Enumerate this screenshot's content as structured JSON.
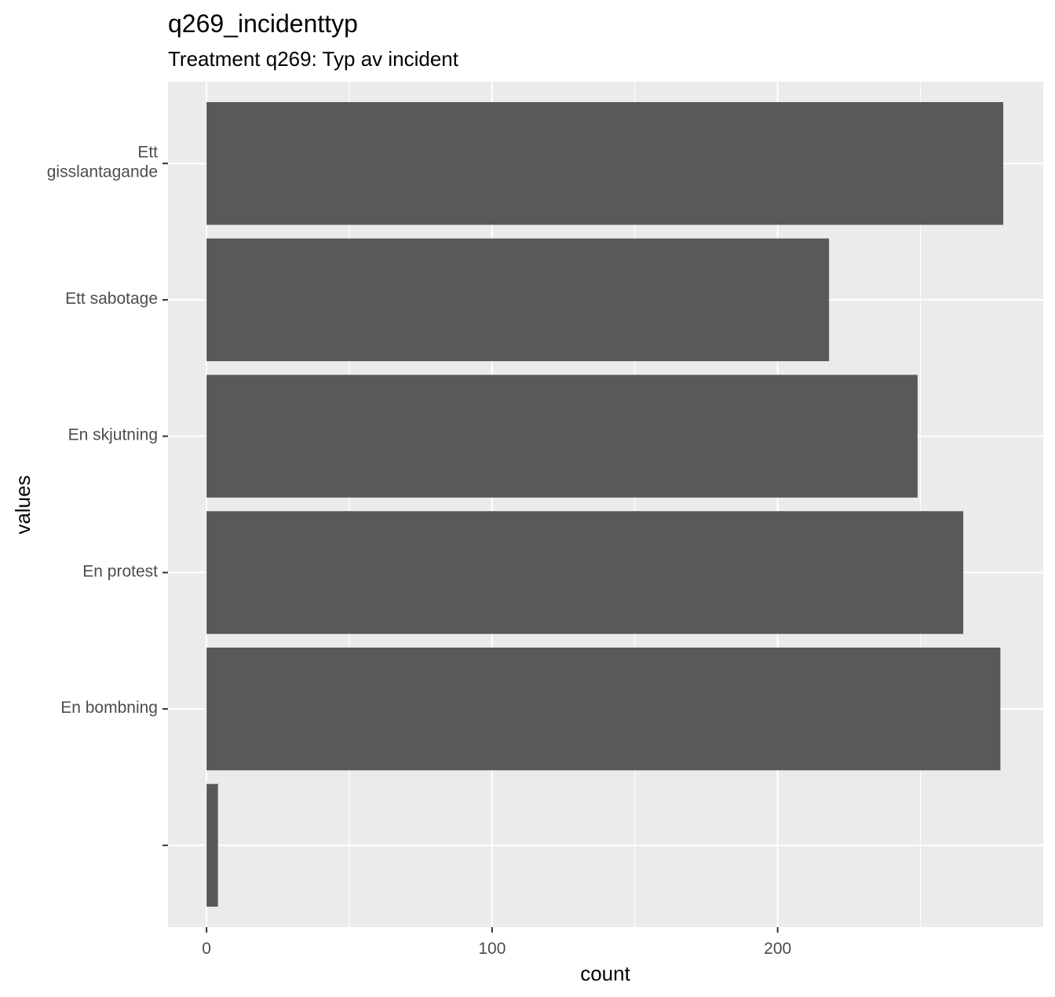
{
  "chart_data": {
    "type": "bar",
    "orientation": "horizontal",
    "title": "q269_incidenttyp",
    "subtitle": "Treatment q269: Typ av incident",
    "xlabel": "count",
    "ylabel": "values",
    "categories": [
      {
        "label": [
          "Ett",
          "gisslantagande"
        ],
        "value": 279
      },
      {
        "label": [
          "Ett sabotage"
        ],
        "value": 218
      },
      {
        "label": [
          "En skjutning"
        ],
        "value": 249
      },
      {
        "label": [
          "En protest"
        ],
        "value": 265
      },
      {
        "label": [
          "En bombning"
        ],
        "value": 278
      },
      {
        "label": [
          ""
        ],
        "value": 4
      }
    ],
    "xlim": [
      -13.5,
      293
    ],
    "xticks": [
      0,
      100,
      200
    ],
    "grid": true,
    "colors": {
      "panel": "#ebebeb",
      "bar": "#595959",
      "grid": "#ffffff",
      "tick": "#4d4d4d"
    }
  }
}
